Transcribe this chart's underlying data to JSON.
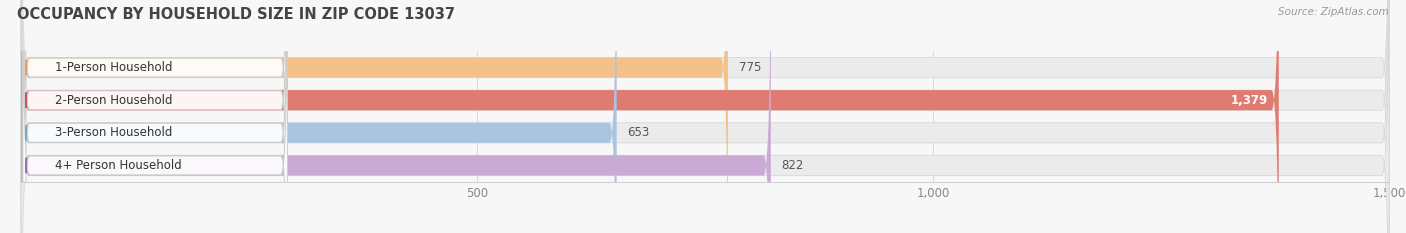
{
  "title": "OCCUPANCY BY HOUSEHOLD SIZE IN ZIP CODE 13037",
  "source": "Source: ZipAtlas.com",
  "categories": [
    "1-Person Household",
    "2-Person Household",
    "3-Person Household",
    "4+ Person Household"
  ],
  "values": [
    775,
    1379,
    653,
    822
  ],
  "bar_colors": [
    "#f5c18a",
    "#e07b72",
    "#aac5e2",
    "#c8aad4"
  ],
  "dot_colors": [
    "#e8a060",
    "#cc5550",
    "#7aaaca",
    "#9870b0"
  ],
  "value_colors": [
    "#555555",
    "#ffffff",
    "#555555",
    "#555555"
  ],
  "xlim_min": 0,
  "xlim_max": 1500,
  "xticks": [
    500,
    1000,
    1500
  ],
  "bar_height": 0.62,
  "background_color": "#f7f7f7",
  "bar_bg_color": "#ebebeb",
  "bar_bg_border": "#d8d8d8",
  "title_fontsize": 10.5,
  "label_fontsize": 8.5,
  "value_fontsize": 8.5,
  "tick_fontsize": 8.5,
  "source_fontsize": 7.5
}
